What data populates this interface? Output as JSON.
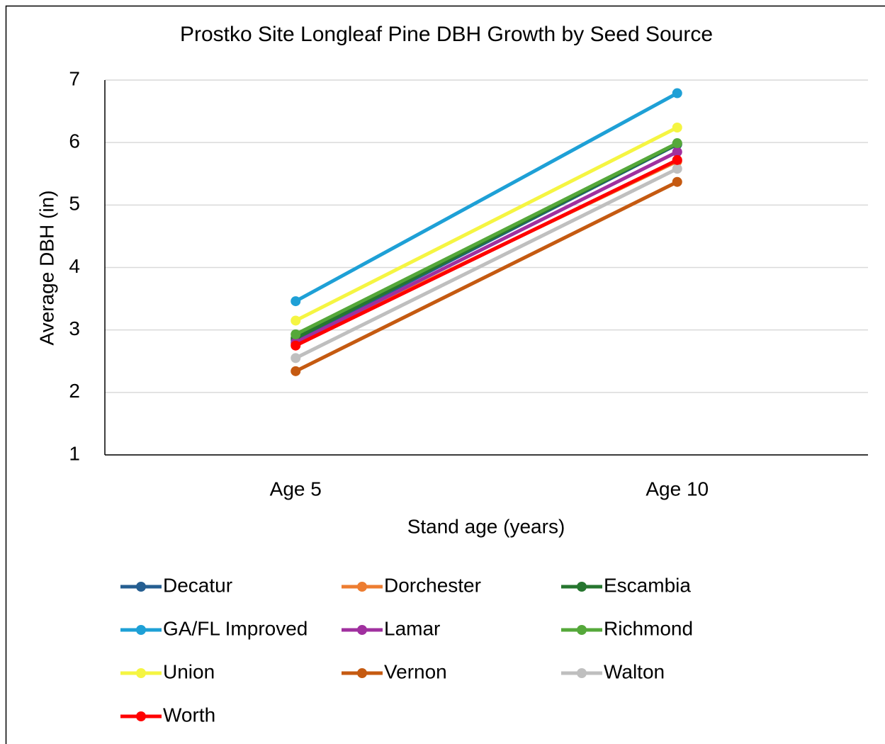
{
  "chart_data": {
    "type": "line",
    "title": "Prostko Site Longleaf Pine DBH Growth by Seed Source",
    "x_label": "Stand age (years)",
    "y_label": "Average DBH (in)",
    "categories": [
      "Age 5",
      "Age 10"
    ],
    "series": [
      {
        "name": "Decatur",
        "color": "#255e91",
        "values": [
          2.84,
          5.97
        ]
      },
      {
        "name": "Dorchester",
        "color": "#ed7d31",
        "values": [
          2.78,
          5.7
        ]
      },
      {
        "name": "Escambia",
        "color": "#26762f",
        "values": [
          2.87,
          5.98
        ]
      },
      {
        "name": "GA/FL Improved",
        "color": "#1ea0d6",
        "values": [
          3.46,
          6.79
        ]
      },
      {
        "name": "Lamar",
        "color": "#a0309f",
        "values": [
          2.8,
          5.85
        ]
      },
      {
        "name": "Richmond",
        "color": "#55a83a",
        "values": [
          2.93,
          5.99
        ]
      },
      {
        "name": "Union",
        "color": "#f5f542",
        "values": [
          3.15,
          6.24
        ]
      },
      {
        "name": "Vernon",
        "color": "#c55a11",
        "values": [
          2.34,
          5.37
        ]
      },
      {
        "name": "Walton",
        "color": "#bfbfbf",
        "values": [
          2.55,
          5.58
        ]
      },
      {
        "name": "Worth",
        "color": "#ff0000",
        "values": [
          2.75,
          5.72
        ]
      }
    ],
    "ylim": [
      1,
      7
    ],
    "yticks": [
      1,
      2,
      3,
      4,
      5,
      6,
      7
    ],
    "grid": true,
    "legend": "bottom"
  }
}
